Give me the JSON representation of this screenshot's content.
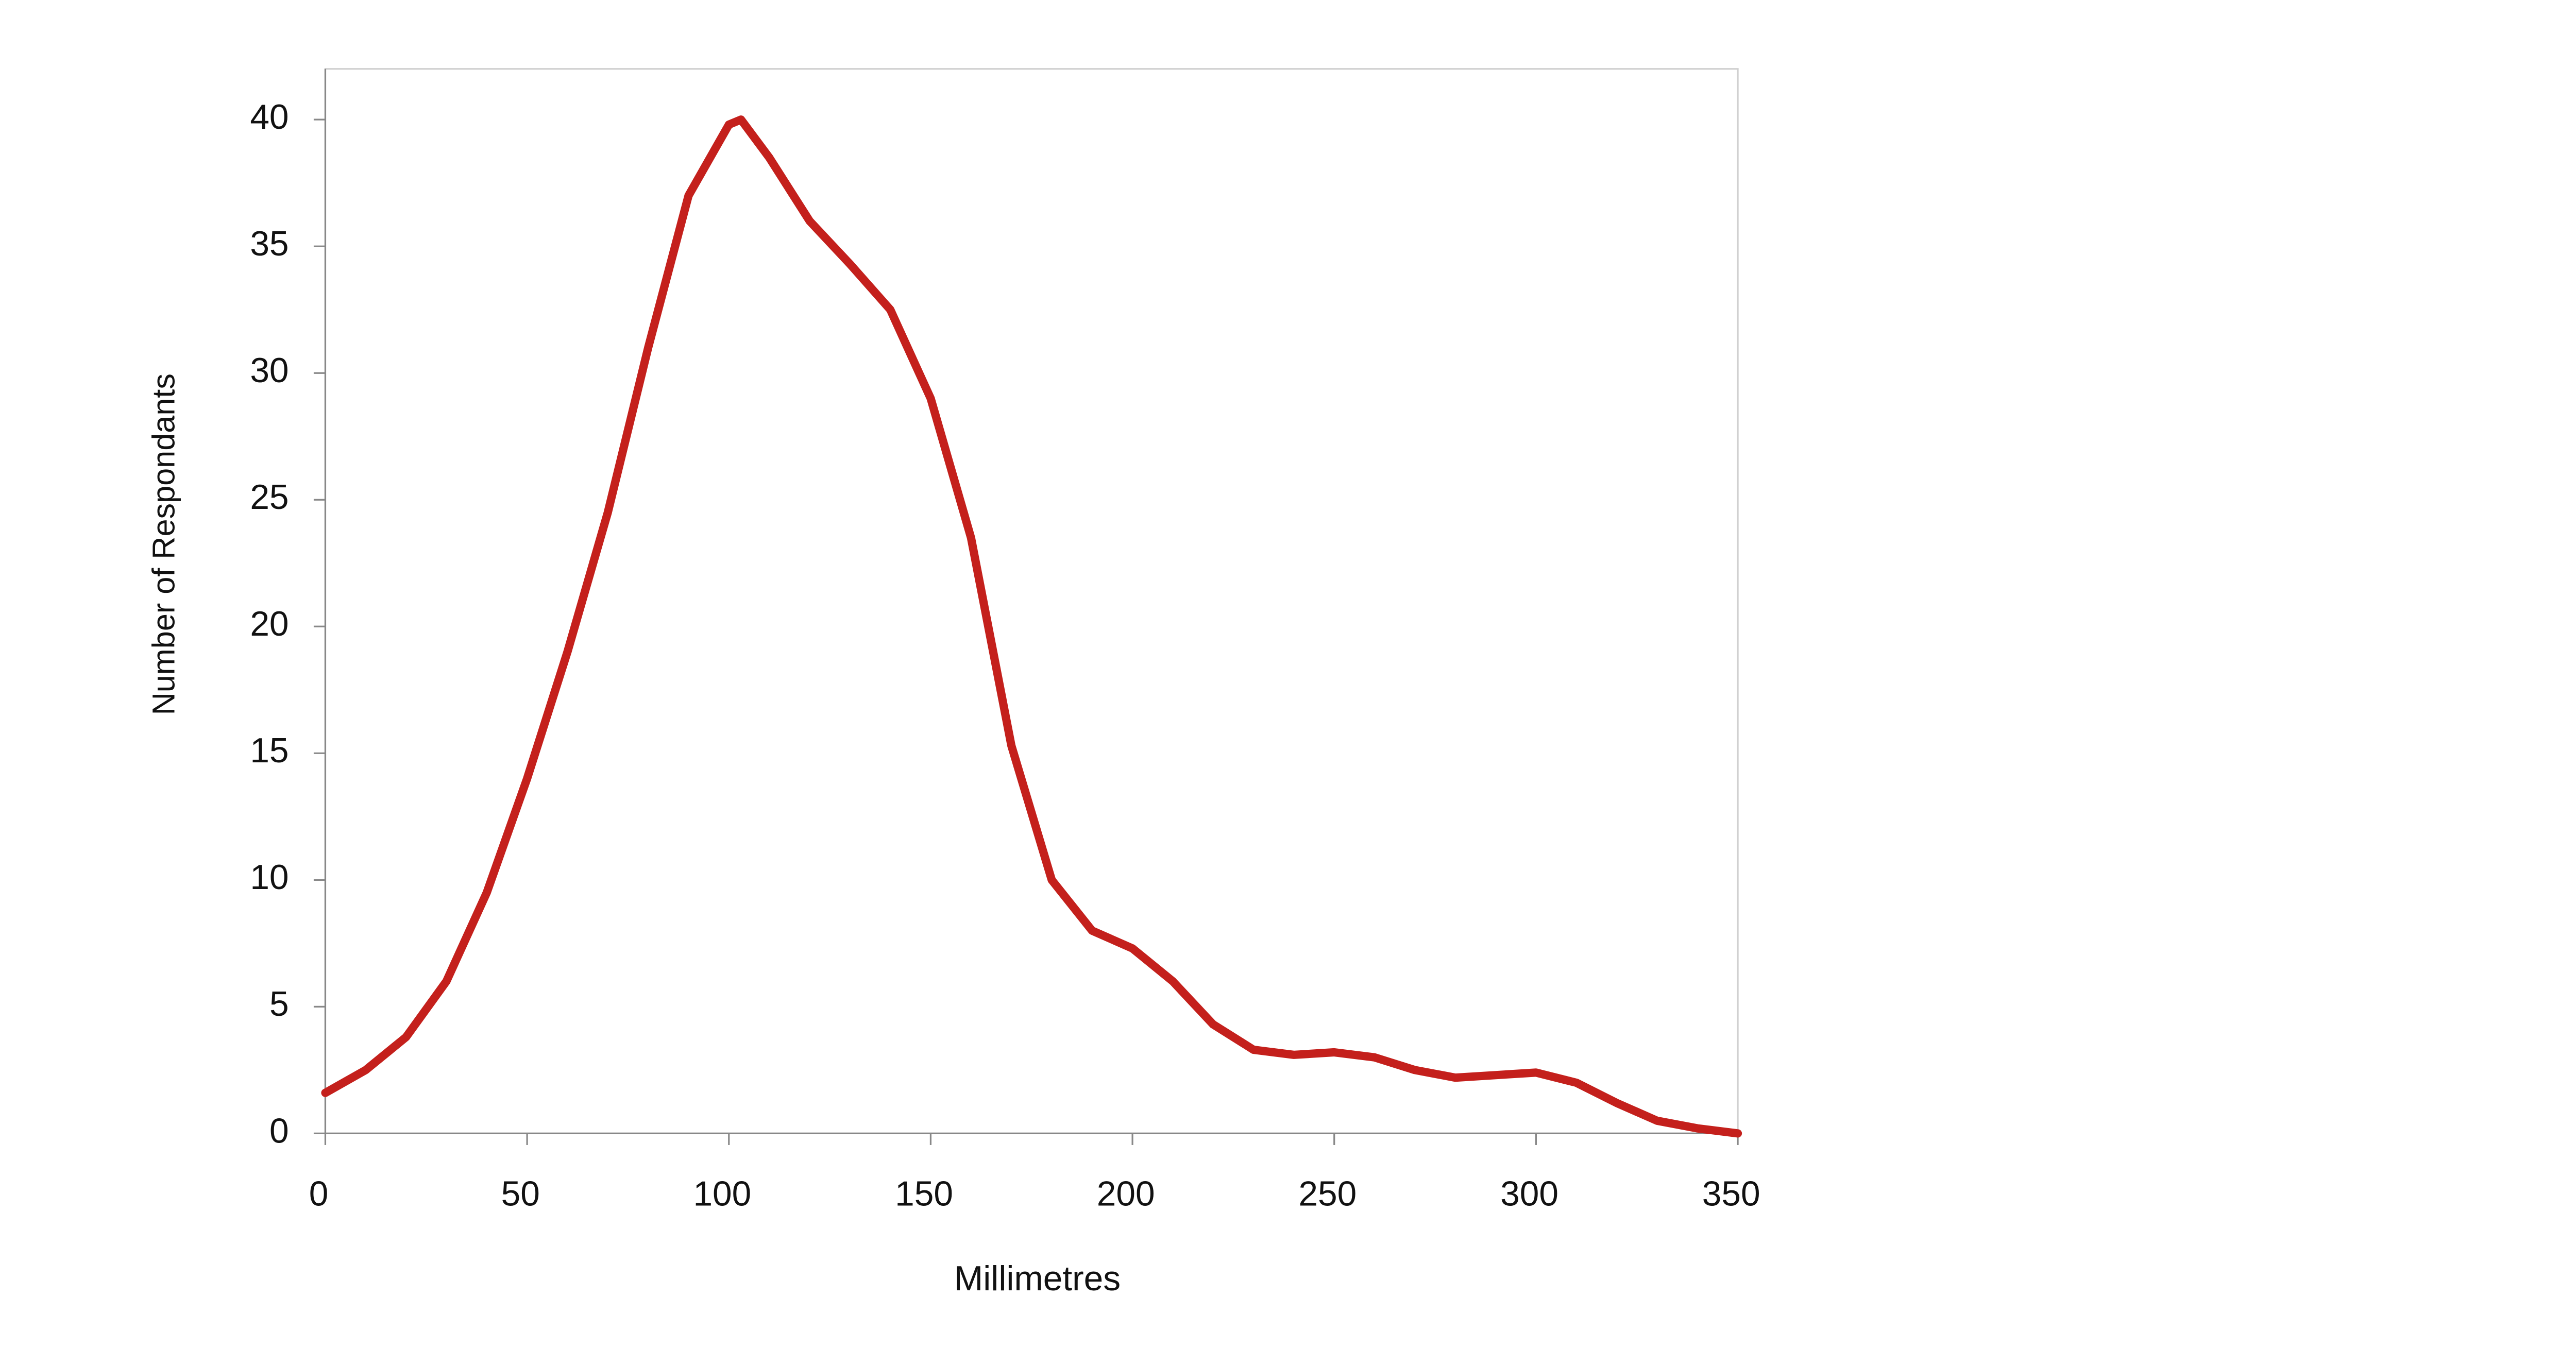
{
  "chart_data": {
    "type": "line",
    "x_label": "Millimetres",
    "y_label": "Number of Respondants",
    "x": [
      0,
      10,
      20,
      30,
      40,
      50,
      60,
      70,
      80,
      90,
      100,
      103,
      110,
      120,
      130,
      140,
      150,
      160,
      170,
      180,
      190,
      200,
      210,
      220,
      230,
      240,
      250,
      260,
      270,
      280,
      290,
      300,
      310,
      320,
      330,
      340,
      350
    ],
    "series": [
      {
        "color": "#c4201c",
        "values": [
          1.6,
          2.5,
          3.8,
          6,
          9.5,
          14,
          19,
          24.5,
          31,
          37,
          39.8,
          40,
          38.5,
          36,
          34.3,
          32.5,
          29,
          23.5,
          15.3,
          10,
          8,
          7.3,
          6,
          4.3,
          3.3,
          3.1,
          3.2,
          3,
          2.5,
          2.2,
          2.3,
          2.4,
          2,
          1.2,
          0.5,
          0.2,
          0
        ]
      }
    ],
    "xlim": [
      0,
      350
    ],
    "xticks": [
      0,
      50,
      100,
      150,
      200,
      250,
      300,
      350
    ],
    "ylim": [
      0,
      42
    ],
    "yticks": [
      0,
      5,
      10,
      15,
      20,
      25,
      30,
      35,
      40
    ]
  }
}
